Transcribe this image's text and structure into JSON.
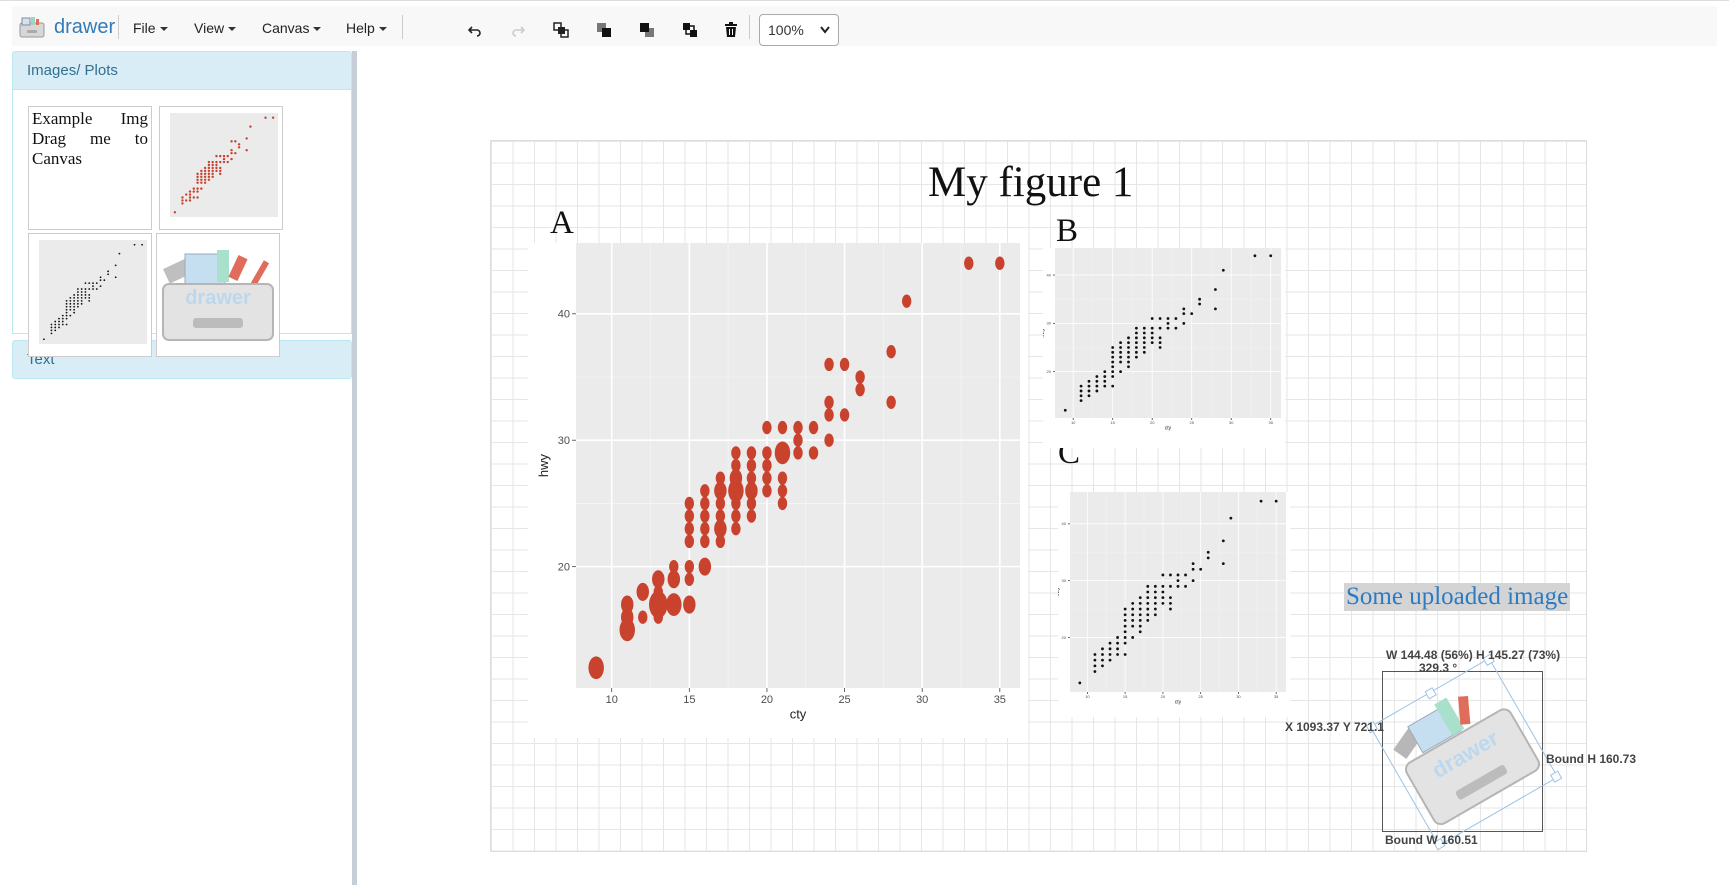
{
  "app": {
    "name": "drawer"
  },
  "menus": {
    "file": "File",
    "view": "View",
    "canvas": "Canvas",
    "help": "Help"
  },
  "zoom": "100%",
  "sidebar": {
    "images_header": "Images/ Plots",
    "example_text": "Example Img Drag me to Canvas",
    "text_header": "Text"
  },
  "canvas": {
    "title": "My figure 1",
    "labels": {
      "a": "A",
      "b": "B",
      "c": "C"
    },
    "uploaded_text": "Some uploaded image",
    "selection": {
      "size": "W 144.48 (56%) H 145.27 (73%)",
      "rotation": "329.3 °",
      "position": "X 1093.37 Y 721.1",
      "bound_h": "Bound H 160.73",
      "bound_w": "Bound W 160.51"
    }
  },
  "colors": {
    "brand": "#337ab7",
    "plot_red": "#c9422e",
    "panel_bg": "#d9edf7",
    "ggplot_bg": "#ebebeb"
  },
  "icons": [
    "undo-icon",
    "redo-icon",
    "bring-to-front-icon",
    "bring-forward-icon",
    "send-backward-icon",
    "send-to-back-icon",
    "trash-icon"
  ],
  "chart_data": [
    {
      "type": "scatter",
      "panel": "A",
      "xlabel": "cty",
      "ylabel": "hwy",
      "xticks": [
        10,
        15,
        20,
        25,
        30,
        35
      ],
      "yticks": [
        20,
        30,
        40
      ],
      "xlim": [
        7.7,
        36.3
      ],
      "ylim": [
        10.4,
        45.6
      ],
      "points": [
        [
          9,
          12,
          3
        ],
        [
          11,
          15,
          3
        ],
        [
          11,
          16,
          2
        ],
        [
          11,
          17,
          2
        ],
        [
          12,
          16,
          1
        ],
        [
          12,
          18,
          2
        ],
        [
          13,
          16,
          1
        ],
        [
          13,
          17,
          4
        ],
        [
          13,
          18,
          1
        ],
        [
          13,
          19,
          2
        ],
        [
          14,
          17,
          3
        ],
        [
          14,
          19,
          2
        ],
        [
          14,
          20,
          1
        ],
        [
          15,
          17,
          2
        ],
        [
          15,
          19,
          1
        ],
        [
          15,
          20,
          1
        ],
        [
          15,
          22,
          1
        ],
        [
          15,
          23,
          1
        ],
        [
          15,
          24,
          1
        ],
        [
          15,
          25,
          1
        ],
        [
          16,
          20,
          2
        ],
        [
          16,
          22,
          1
        ],
        [
          16,
          23,
          1
        ],
        [
          16,
          24,
          1
        ],
        [
          16,
          25,
          1
        ],
        [
          16,
          26,
          1
        ],
        [
          17,
          22,
          1
        ],
        [
          17,
          23,
          2
        ],
        [
          17,
          24,
          1
        ],
        [
          17,
          25,
          1
        ],
        [
          17,
          26,
          2
        ],
        [
          17,
          27,
          1
        ],
        [
          18,
          23,
          1
        ],
        [
          18,
          24,
          1
        ],
        [
          18,
          25,
          1
        ],
        [
          18,
          26,
          3
        ],
        [
          18,
          27,
          2
        ],
        [
          18,
          28,
          1
        ],
        [
          18,
          29,
          1
        ],
        [
          19,
          24,
          1
        ],
        [
          19,
          25,
          1
        ],
        [
          19,
          26,
          2
        ],
        [
          19,
          27,
          1
        ],
        [
          19,
          28,
          1
        ],
        [
          19,
          29,
          1
        ],
        [
          20,
          26,
          1
        ],
        [
          20,
          27,
          1
        ],
        [
          20,
          28,
          1
        ],
        [
          20,
          29,
          1
        ],
        [
          20,
          31,
          1
        ],
        [
          21,
          25,
          1
        ],
        [
          21,
          26,
          1
        ],
        [
          21,
          27,
          1
        ],
        [
          21,
          29,
          3
        ],
        [
          21,
          31,
          1
        ],
        [
          22,
          29,
          1
        ],
        [
          22,
          30,
          1
        ],
        [
          22,
          31,
          1
        ],
        [
          23,
          29,
          1
        ],
        [
          23,
          31,
          1
        ],
        [
          24,
          30,
          1
        ],
        [
          24,
          32,
          1
        ],
        [
          24,
          33,
          1
        ],
        [
          24,
          36,
          1
        ],
        [
          25,
          32,
          1
        ],
        [
          25,
          36,
          1
        ],
        [
          26,
          34,
          1
        ],
        [
          26,
          35,
          1
        ],
        [
          28,
          33,
          1
        ],
        [
          28,
          37,
          1
        ],
        [
          29,
          41,
          1
        ],
        [
          33,
          44,
          1
        ],
        [
          35,
          44,
          1
        ]
      ]
    },
    {
      "type": "scatter",
      "panel": "B",
      "xlabel": "cty",
      "ylabel": "hwy",
      "xticks": [
        10,
        15,
        20,
        25,
        30,
        35
      ],
      "yticks": [
        20,
        30,
        40
      ],
      "xlim": [
        7.7,
        36.3
      ],
      "ylim": [
        10.4,
        45.6
      ],
      "points": [
        [
          9,
          12
        ],
        [
          11,
          14
        ],
        [
          11,
          15
        ],
        [
          11,
          16
        ],
        [
          11,
          17
        ],
        [
          12,
          15
        ],
        [
          12,
          16
        ],
        [
          12,
          17
        ],
        [
          12,
          18
        ],
        [
          13,
          16
        ],
        [
          13,
          17
        ],
        [
          13,
          18
        ],
        [
          13,
          19
        ],
        [
          14,
          17
        ],
        [
          14,
          18
        ],
        [
          14,
          19
        ],
        [
          14,
          20
        ],
        [
          15,
          17
        ],
        [
          15,
          19
        ],
        [
          15,
          20
        ],
        [
          15,
          21
        ],
        [
          15,
          22
        ],
        [
          15,
          23
        ],
        [
          15,
          24
        ],
        [
          15,
          25
        ],
        [
          16,
          20
        ],
        [
          16,
          22
        ],
        [
          16,
          23
        ],
        [
          16,
          24
        ],
        [
          16,
          25
        ],
        [
          16,
          26
        ],
        [
          17,
          21
        ],
        [
          17,
          22
        ],
        [
          17,
          23
        ],
        [
          17,
          24
        ],
        [
          17,
          25
        ],
        [
          17,
          26
        ],
        [
          17,
          27
        ],
        [
          18,
          23
        ],
        [
          18,
          24
        ],
        [
          18,
          25
        ],
        [
          18,
          26
        ],
        [
          18,
          27
        ],
        [
          18,
          28
        ],
        [
          18,
          29
        ],
        [
          19,
          24
        ],
        [
          19,
          25
        ],
        [
          19,
          26
        ],
        [
          19,
          27
        ],
        [
          19,
          28
        ],
        [
          19,
          29
        ],
        [
          20,
          26
        ],
        [
          20,
          27
        ],
        [
          20,
          28
        ],
        [
          20,
          29
        ],
        [
          20,
          31
        ],
        [
          21,
          25
        ],
        [
          21,
          26
        ],
        [
          21,
          27
        ],
        [
          21,
          29
        ],
        [
          21,
          31
        ],
        [
          22,
          29
        ],
        [
          22,
          30
        ],
        [
          22,
          31
        ],
        [
          23,
          29
        ],
        [
          23,
          31
        ],
        [
          24,
          30
        ],
        [
          24,
          32
        ],
        [
          24,
          33
        ],
        [
          25,
          32
        ],
        [
          26,
          34
        ],
        [
          26,
          35
        ],
        [
          28,
          33
        ],
        [
          28,
          37
        ],
        [
          29,
          41
        ],
        [
          33,
          44
        ],
        [
          35,
          44
        ]
      ]
    },
    {
      "type": "scatter",
      "panel": "C",
      "xlabel": "cty",
      "ylabel": "hwy",
      "xticks": [
        10,
        15,
        20,
        25,
        30,
        35
      ],
      "yticks": [
        20,
        30,
        40
      ],
      "xlim": [
        7.7,
        36.3
      ],
      "ylim": [
        10.4,
        45.6
      ],
      "points": [
        [
          9,
          12
        ],
        [
          11,
          14
        ],
        [
          11,
          15
        ],
        [
          11,
          16
        ],
        [
          11,
          17
        ],
        [
          12,
          15
        ],
        [
          12,
          16
        ],
        [
          12,
          17
        ],
        [
          12,
          18
        ],
        [
          13,
          16
        ],
        [
          13,
          17
        ],
        [
          13,
          18
        ],
        [
          13,
          19
        ],
        [
          14,
          17
        ],
        [
          14,
          18
        ],
        [
          14,
          19
        ],
        [
          14,
          20
        ],
        [
          15,
          17
        ],
        [
          15,
          19
        ],
        [
          15,
          20
        ],
        [
          15,
          21
        ],
        [
          15,
          22
        ],
        [
          15,
          23
        ],
        [
          15,
          24
        ],
        [
          15,
          25
        ],
        [
          16,
          20
        ],
        [
          16,
          22
        ],
        [
          16,
          23
        ],
        [
          16,
          24
        ],
        [
          16,
          25
        ],
        [
          16,
          26
        ],
        [
          17,
          21
        ],
        [
          17,
          22
        ],
        [
          17,
          23
        ],
        [
          17,
          24
        ],
        [
          17,
          25
        ],
        [
          17,
          26
        ],
        [
          17,
          27
        ],
        [
          18,
          23
        ],
        [
          18,
          24
        ],
        [
          18,
          25
        ],
        [
          18,
          26
        ],
        [
          18,
          27
        ],
        [
          18,
          28
        ],
        [
          18,
          29
        ],
        [
          19,
          24
        ],
        [
          19,
          25
        ],
        [
          19,
          26
        ],
        [
          19,
          27
        ],
        [
          19,
          28
        ],
        [
          19,
          29
        ],
        [
          20,
          26
        ],
        [
          20,
          27
        ],
        [
          20,
          28
        ],
        [
          20,
          29
        ],
        [
          20,
          31
        ],
        [
          21,
          25
        ],
        [
          21,
          26
        ],
        [
          21,
          27
        ],
        [
          21,
          29
        ],
        [
          21,
          31
        ],
        [
          22,
          29
        ],
        [
          22,
          30
        ],
        [
          22,
          31
        ],
        [
          23,
          29
        ],
        [
          23,
          31
        ],
        [
          24,
          30
        ],
        [
          24,
          32
        ],
        [
          24,
          33
        ],
        [
          25,
          32
        ],
        [
          26,
          34
        ],
        [
          26,
          35
        ],
        [
          28,
          33
        ],
        [
          28,
          37
        ],
        [
          29,
          41
        ],
        [
          33,
          44
        ],
        [
          35,
          44
        ]
      ]
    }
  ]
}
